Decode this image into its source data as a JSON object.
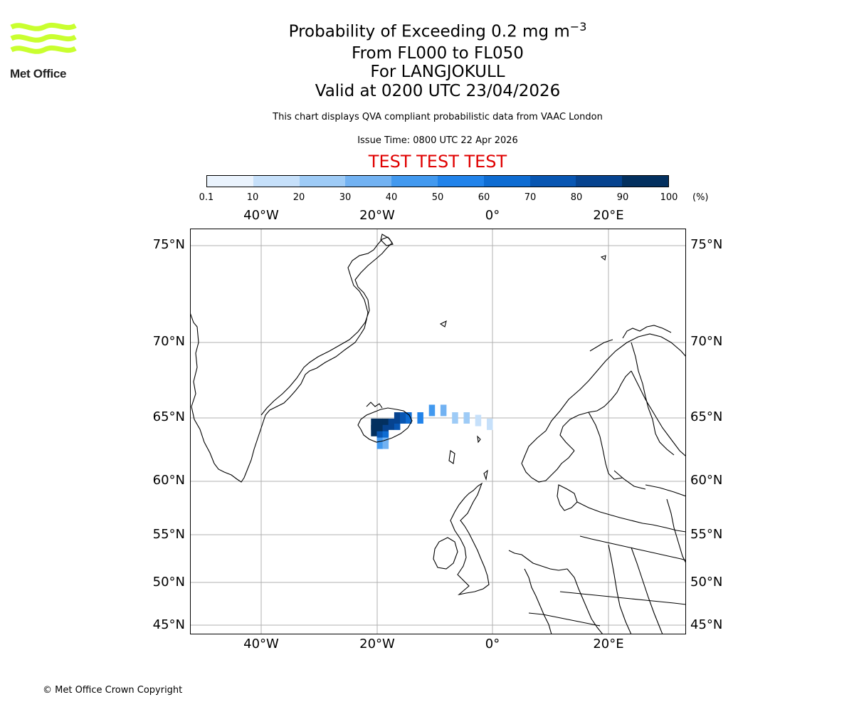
{
  "logo": {
    "text": "Met Office",
    "color": "#c9ff2f"
  },
  "title": {
    "line1_prefix": "Probability of Exceeding 0.2 mg m",
    "line1_sup": "−3",
    "line2": "From FL000 to FL050",
    "line3": "For LANGJOKULL",
    "line4": "Valid at 0200 UTC 23/04/2026"
  },
  "info": {
    "description": "This chart displays QVA compliant probabilistic data from VAAC London",
    "issue_time": "Issue Time: 0800 UTC 22 Apr 2026",
    "test_banner": "TEST TEST TEST"
  },
  "colorbar": {
    "ticks": [
      "0.1",
      "10",
      "20",
      "30",
      "40",
      "50",
      "60",
      "70",
      "80",
      "90",
      "100"
    ],
    "unit": "(%)",
    "colors": [
      "#eaf3fd",
      "#c6e0fa",
      "#9ecbf6",
      "#72b2f2",
      "#4299ef",
      "#2183ea",
      "#0e6cd2",
      "#0856b2",
      "#06438f",
      "#03305f"
    ]
  },
  "map": {
    "lon_labels": [
      "40°W",
      "20°W",
      "0°",
      "20°E"
    ],
    "lat_labels": [
      "75°N",
      "70°N",
      "65°N",
      "60°N",
      "55°N",
      "50°N",
      "45°N"
    ]
  },
  "chart_data": {
    "type": "heatmap",
    "title": "Probability of Exceeding 0.2 mg m−3",
    "units": "%",
    "bins": [
      0.1,
      10,
      20,
      30,
      40,
      50,
      60,
      70,
      80,
      90,
      100
    ],
    "lon_ticks": [
      -40,
      -20,
      0,
      20
    ],
    "lat_ticks": [
      75,
      70,
      65,
      60,
      55,
      50,
      45
    ],
    "plume": [
      {
        "lon": -20.5,
        "lat": 64.5,
        "prob": 95
      },
      {
        "lon": -19.5,
        "lat": 64.5,
        "prob": 95
      },
      {
        "lon": -18.5,
        "lat": 64.5,
        "prob": 92
      },
      {
        "lon": -17.5,
        "lat": 64.5,
        "prob": 85
      },
      {
        "lon": -16.5,
        "lat": 64.5,
        "prob": 75
      },
      {
        "lon": -20.5,
        "lat": 64.0,
        "prob": 92
      },
      {
        "lon": -19.5,
        "lat": 64.0,
        "prob": 92
      },
      {
        "lon": -18.5,
        "lat": 64.0,
        "prob": 85
      },
      {
        "lon": -19.5,
        "lat": 63.5,
        "prob": 75
      },
      {
        "lon": -18.5,
        "lat": 63.5,
        "prob": 65
      },
      {
        "lon": -19.5,
        "lat": 63.0,
        "prob": 45
      },
      {
        "lon": -18.5,
        "lat": 63.0,
        "prob": 35
      },
      {
        "lon": -16.5,
        "lat": 65.0,
        "prob": 85
      },
      {
        "lon": -15.5,
        "lat": 65.0,
        "prob": 75
      },
      {
        "lon": -14.5,
        "lat": 65.0,
        "prob": 65
      },
      {
        "lon": -12.5,
        "lat": 65.0,
        "prob": 55
      },
      {
        "lon": -10.5,
        "lat": 65.5,
        "prob": 45
      },
      {
        "lon": -8.5,
        "lat": 65.5,
        "prob": 35
      },
      {
        "lon": -6.5,
        "lat": 65.0,
        "prob": 25
      },
      {
        "lon": -4.5,
        "lat": 65.0,
        "prob": 20
      },
      {
        "lon": -2.5,
        "lat": 64.8,
        "prob": 15
      },
      {
        "lon": -0.5,
        "lat": 64.5,
        "prob": 12
      }
    ]
  },
  "footer": {
    "copyright": "© Met Office Crown Copyright"
  }
}
